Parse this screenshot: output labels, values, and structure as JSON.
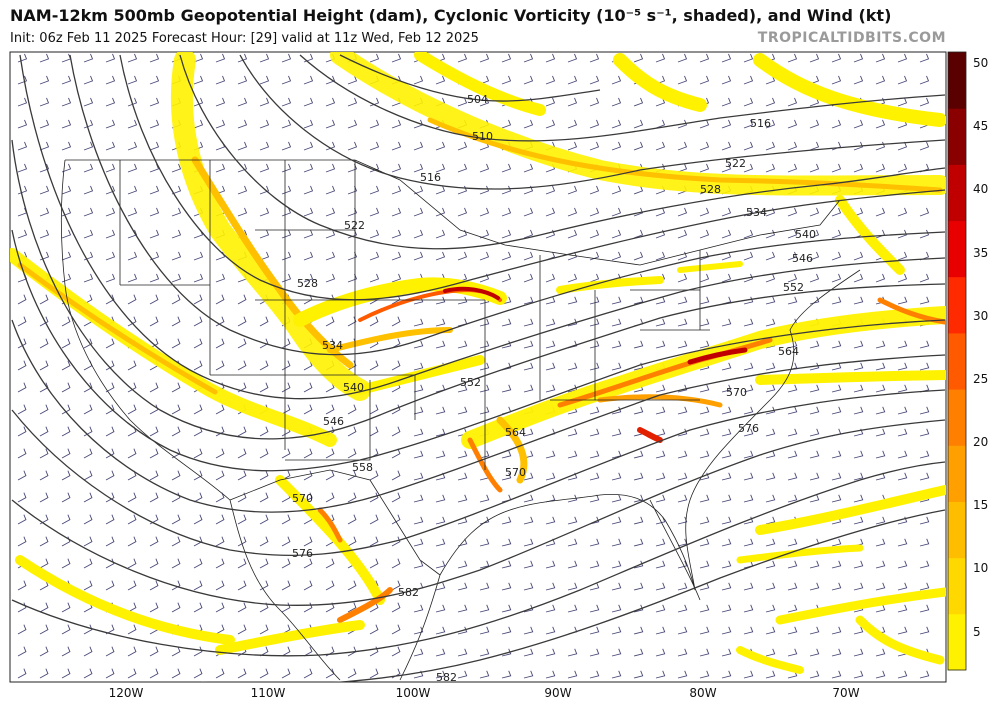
{
  "header": {
    "title": "NAM-12km 500mb Geopotential Height (dam), Cyclonic Vorticity (10⁻⁵ s⁻¹, shaded), and Wind (kt)",
    "subtitle": "Init: 06z Feb 11 2025   Forecast Hour: [29]   valid at 11z Wed, Feb 12 2025",
    "credit": "TROPICALTIDBITS.COM"
  },
  "map": {
    "longitude_labels": [
      "120W",
      "110W",
      "100W",
      "90W",
      "80W",
      "70W"
    ],
    "contour_labels": [
      "504",
      "510",
      "516",
      "516",
      "522",
      "522",
      "528",
      "528",
      "534",
      "534",
      "540",
      "540",
      "546",
      "546",
      "552",
      "552",
      "558",
      "564",
      "564",
      "570",
      "570",
      "570",
      "576",
      "576",
      "582"
    ]
  },
  "colorbar": {
    "ticks": [
      "50",
      "45",
      "40",
      "35",
      "30",
      "25",
      "20",
      "15",
      "10",
      "5"
    ],
    "colors": [
      "#fff200",
      "#ffd800",
      "#ffbd00",
      "#ffa000",
      "#ff8000",
      "#ff5a00",
      "#ff2a00",
      "#e80000",
      "#c00000",
      "#8a0000",
      "#5a0000"
    ]
  },
  "colors": {
    "vort_light": "#fff200",
    "vort_mid": "#ffc000",
    "vort_high": "#e22000",
    "contour": "#333333",
    "barb": "#4a4a78",
    "borders": "#222222"
  }
}
